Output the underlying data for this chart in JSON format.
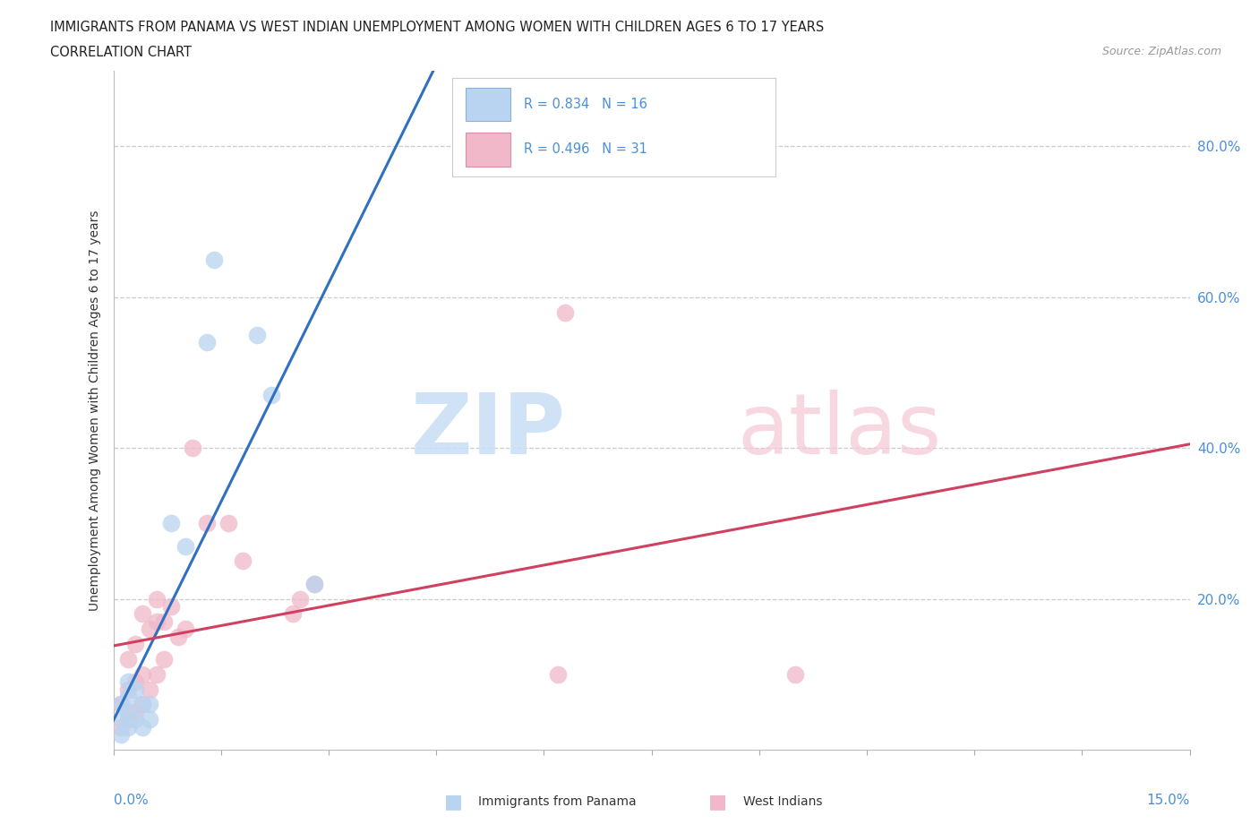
{
  "title": "IMMIGRANTS FROM PANAMA VS WEST INDIAN UNEMPLOYMENT AMONG WOMEN WITH CHILDREN AGES 6 TO 17 YEARS",
  "subtitle": "CORRELATION CHART",
  "source": "Source: ZipAtlas.com",
  "ylabel": "Unemployment Among Women with Children Ages 6 to 17 years",
  "ytick_labels": [
    "20.0%",
    "40.0%",
    "60.0%",
    "80.0%"
  ],
  "ytick_vals": [
    0.2,
    0.4,
    0.6,
    0.8
  ],
  "legend_label1": "Immigrants from Panama",
  "legend_label2": "West Indians",
  "color_panama": "#b8d4f0",
  "color_westindian": "#f0b8c8",
  "color_line_panama": "#3070c0",
  "color_line_westindian": "#d04060",
  "xlim": [
    0.0,
    0.15
  ],
  "ylim": [
    0.0,
    0.9
  ],
  "panama_x": [
    0.001,
    0.001,
    0.001,
    0.002,
    0.002,
    0.002,
    0.002,
    0.003,
    0.003,
    0.004,
    0.004,
    0.005,
    0.005,
    0.008,
    0.01,
    0.013,
    0.014,
    0.02,
    0.022,
    0.028
  ],
  "panama_y": [
    0.02,
    0.04,
    0.06,
    0.03,
    0.05,
    0.07,
    0.09,
    0.04,
    0.08,
    0.03,
    0.06,
    0.04,
    0.06,
    0.3,
    0.27,
    0.54,
    0.65,
    0.55,
    0.47,
    0.22
  ],
  "westindian_x": [
    0.001,
    0.001,
    0.002,
    0.002,
    0.002,
    0.003,
    0.003,
    0.003,
    0.004,
    0.004,
    0.004,
    0.005,
    0.005,
    0.006,
    0.006,
    0.006,
    0.007,
    0.007,
    0.008,
    0.009,
    0.01,
    0.011,
    0.013,
    0.016,
    0.018,
    0.025,
    0.026,
    0.028,
    0.062,
    0.063,
    0.095
  ],
  "westindian_y": [
    0.03,
    0.06,
    0.04,
    0.08,
    0.12,
    0.05,
    0.09,
    0.14,
    0.06,
    0.1,
    0.18,
    0.08,
    0.16,
    0.1,
    0.17,
    0.2,
    0.12,
    0.17,
    0.19,
    0.15,
    0.16,
    0.4,
    0.3,
    0.3,
    0.25,
    0.18,
    0.2,
    0.22,
    0.1,
    0.58,
    0.1
  ]
}
